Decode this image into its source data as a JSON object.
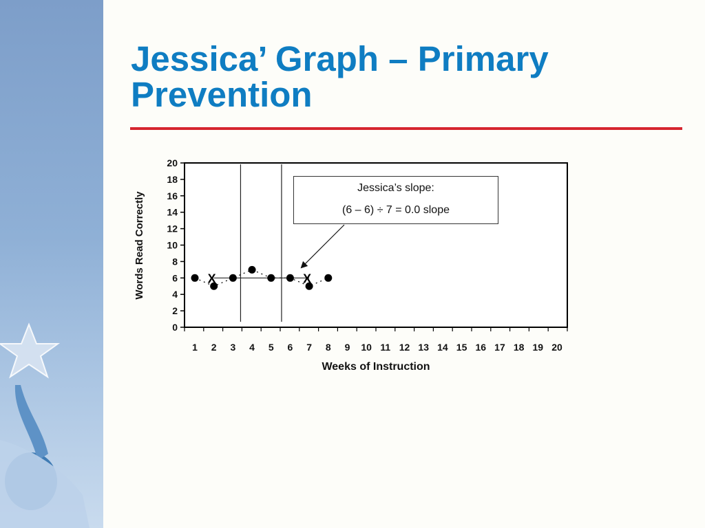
{
  "slide": {
    "title": "Jessica’ Graph – Primary Prevention"
  },
  "annotation": {
    "line1": "Jessica’s slope:",
    "line2": "(6 – 6) ÷ 7 = 0.0 slope"
  },
  "colors": {
    "title": "#0f7dc2",
    "rule": "#d6262f",
    "sidebar": "#8fb0d6"
  },
  "chart_data": {
    "type": "scatter",
    "xlabel": "Weeks of Instruction",
    "ylabel": "Words Read Correctly",
    "xlim": [
      1,
      20
    ],
    "ylim": [
      0,
      20
    ],
    "x_ticks": [
      "1",
      "2",
      "3",
      "4",
      "5",
      "6",
      "7",
      "8",
      "9",
      "10",
      "11",
      "12",
      "13",
      "14",
      "15",
      "16",
      "17",
      "18",
      "19",
      "20"
    ],
    "y_ticks": [
      "0",
      "2",
      "4",
      "6",
      "8",
      "10",
      "12",
      "14",
      "16",
      "18",
      "20"
    ],
    "grid": false,
    "series": [
      {
        "x": [
          1,
          2,
          3,
          4,
          5,
          6,
          7,
          8
        ],
        "values": [
          6,
          5,
          6,
          7,
          6,
          6,
          5,
          6
        ]
      }
    ],
    "phase_lines_x": [
      3.4,
      5.55
    ],
    "median_markers": [
      {
        "label": "X",
        "x": 2,
        "y": 6
      },
      {
        "label": "X",
        "x": 7,
        "y": 6
      }
    ],
    "slope_line": {
      "x": [
        2,
        7
      ],
      "y": [
        6,
        6
      ]
    }
  }
}
